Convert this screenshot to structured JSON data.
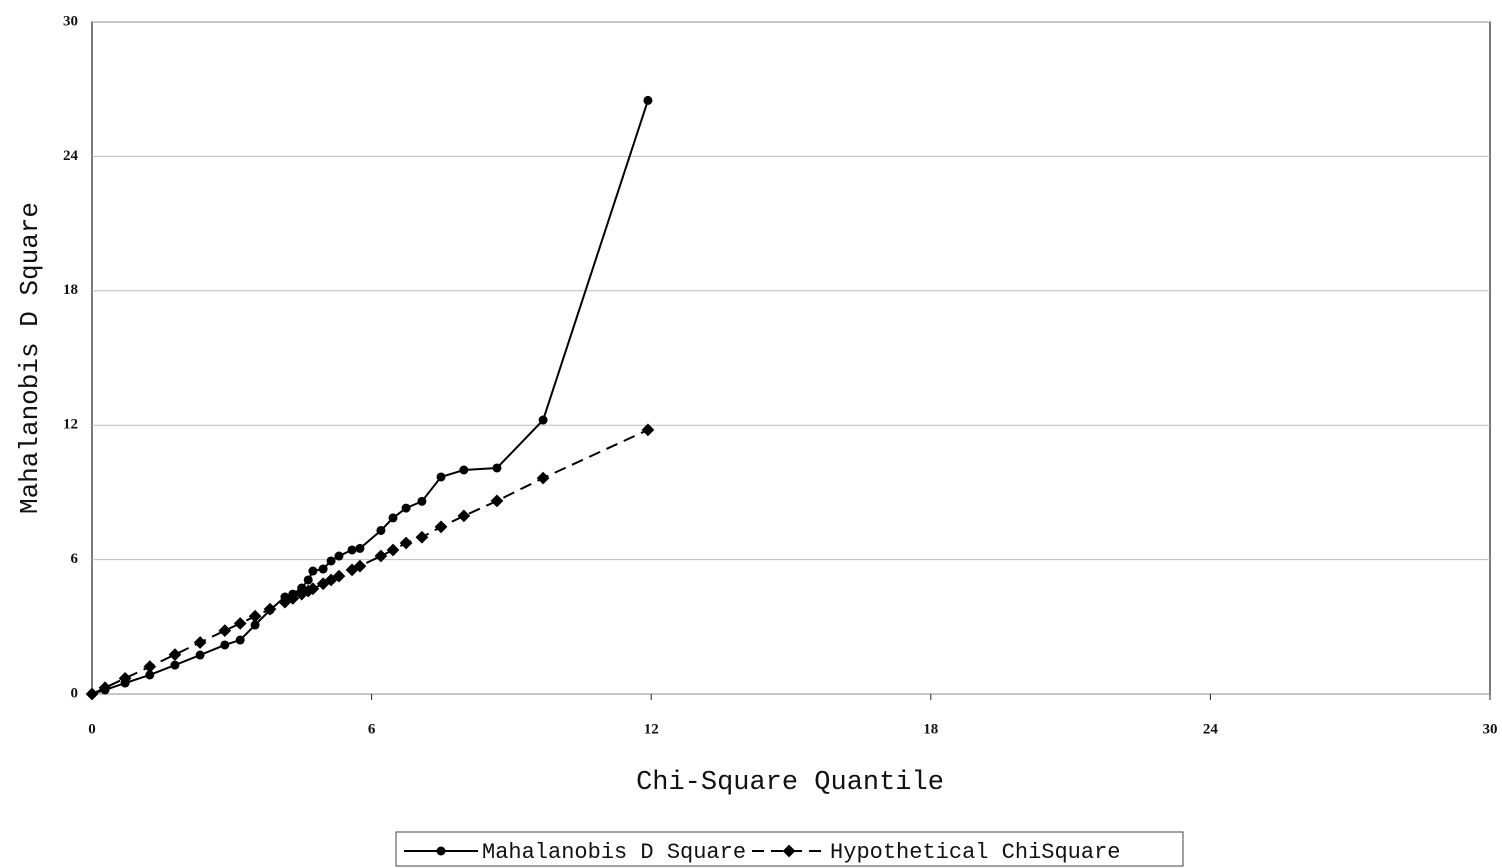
{
  "chart_data": {
    "type": "line",
    "xlabel": "Chi-Square Quantile",
    "ylabel": "Mahalanobis D Square",
    "x": [
      0,
      0.28,
      0.71,
      1.24,
      1.78,
      2.32,
      2.85,
      3.18,
      3.5,
      3.82,
      4.14,
      4.31,
      4.5,
      4.64,
      4.74,
      4.96,
      5.13,
      5.3,
      5.58,
      5.75,
      6.2,
      6.46,
      6.74,
      7.08,
      7.49,
      7.98,
      8.69,
      9.68,
      11.93
    ],
    "series": [
      {
        "name": "Mahalanobis D Square",
        "color": "#000000",
        "line_style": "solid",
        "marker": "circle",
        "values": [
          0,
          0.18,
          0.49,
          0.85,
          1.29,
          1.74,
          2.19,
          2.41,
          3.08,
          3.75,
          4.33,
          4.46,
          4.73,
          5.09,
          5.49,
          5.58,
          5.94,
          6.16,
          6.43,
          6.5,
          7.3,
          7.86,
          8.3,
          8.6,
          9.69,
          10.0,
          10.09,
          12.23,
          26.5
        ]
      },
      {
        "name": "Hypothetical ChiSquare",
        "color": "#000000",
        "line_style": "dashed",
        "marker": "star",
        "values": [
          0,
          0.28,
          0.7,
          1.22,
          1.76,
          2.3,
          2.83,
          3.15,
          3.47,
          3.79,
          4.1,
          4.27,
          4.46,
          4.6,
          4.7,
          4.92,
          5.09,
          5.26,
          5.54,
          5.71,
          6.16,
          6.43,
          6.74,
          7.0,
          7.46,
          7.95,
          8.62,
          9.64,
          11.79
        ]
      }
    ],
    "xlim": [
      0,
      30
    ],
    "xticks": [
      0,
      6,
      12,
      18,
      24,
      30
    ],
    "ylim": [
      0,
      30
    ],
    "yticks": [
      0,
      6,
      12,
      18,
      24,
      30
    ],
    "grid": true,
    "legend": "bottom"
  }
}
